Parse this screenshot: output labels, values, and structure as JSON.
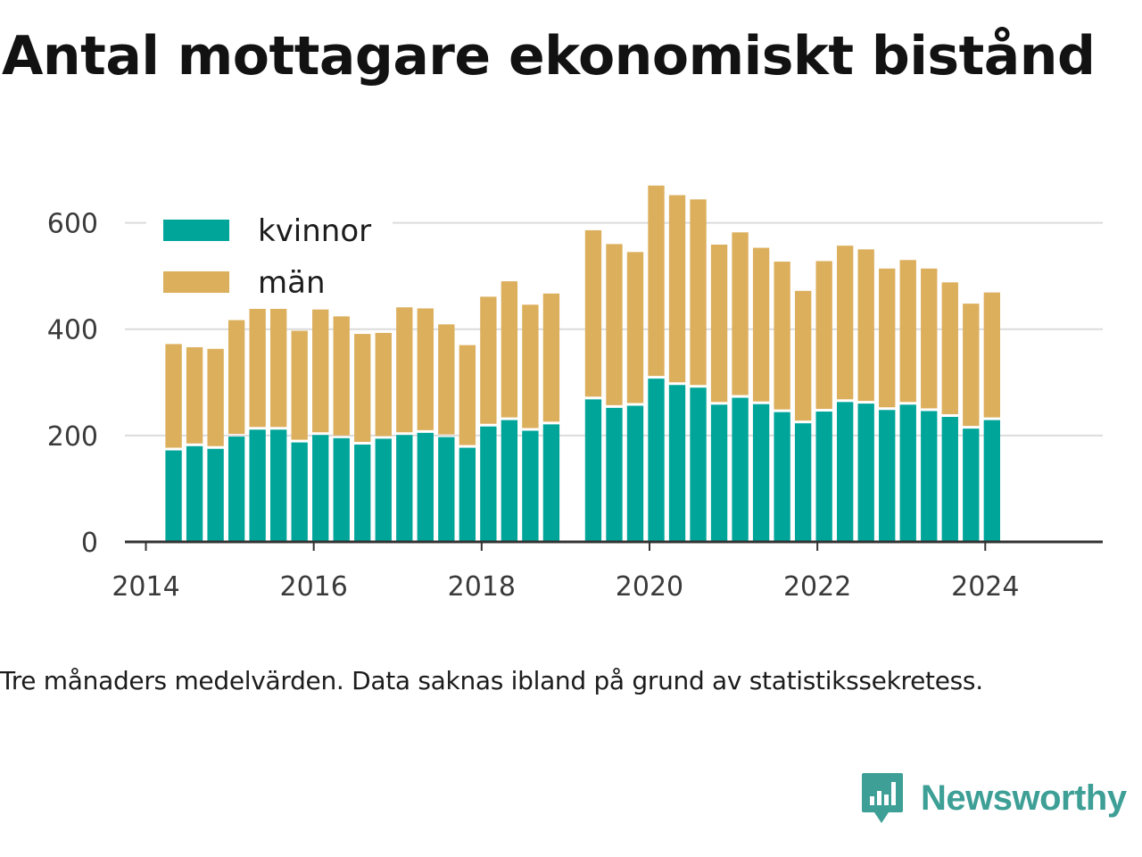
{
  "title": "Antal mottagare ekonomiskt bistånd",
  "caption": "Tre månaders medelvärden. Data saknas ibland på grund av statistikssekretess.",
  "brand": {
    "name": "Newsworthy",
    "icon": "newsworthy-logo-icon",
    "color": "#3d9f96"
  },
  "colors": {
    "kvinnor": "#00a59a",
    "man": "#dcaf5d",
    "grid": "#dcdcdc",
    "axis": "#333333"
  },
  "chart_data": {
    "type": "bar",
    "stacked": true,
    "ylim": [
      0,
      700
    ],
    "yticks": [
      0,
      200,
      400,
      600
    ],
    "xlim": [
      2013.75,
      2025.4
    ],
    "xticks": [
      2014,
      2016,
      2018,
      2020,
      2022,
      2024
    ],
    "grid": true,
    "legend_position": "top-left",
    "x": [
      2014.33,
      2014.58,
      2014.83,
      2015.08,
      2015.33,
      2015.58,
      2015.83,
      2016.08,
      2016.33,
      2016.58,
      2016.83,
      2017.08,
      2017.33,
      2017.58,
      2017.83,
      2018.08,
      2018.33,
      2018.58,
      2018.83,
      2019.33,
      2019.58,
      2019.83,
      2020.08,
      2020.33,
      2020.58,
      2020.83,
      2021.08,
      2021.33,
      2021.58,
      2021.83,
      2022.08,
      2022.33,
      2022.58,
      2022.83,
      2023.08,
      2023.33,
      2023.58,
      2023.83,
      2024.08
    ],
    "series": [
      {
        "name": "kvinnor",
        "color": "#00a59a",
        "values": [
          172,
          180,
          175,
          198,
          211,
          211,
          187,
          201,
          195,
          183,
          194,
          201,
          205,
          197,
          177,
          217,
          229,
          209,
          221,
          268,
          252,
          256,
          307,
          295,
          290,
          258,
          271,
          259,
          244,
          223,
          245,
          263,
          260,
          248,
          258,
          246,
          235,
          213,
          229
        ]
      },
      {
        "name": "män",
        "color": "#dcaf5d",
        "values": [
          200,
          186,
          188,
          219,
          240,
          234,
          210,
          236,
          229,
          208,
          199,
          240,
          234,
          212,
          193,
          244,
          261,
          237,
          246,
          318,
          308,
          289,
          363,
          357,
          354,
          301,
          311,
          294,
          283,
          249,
          283,
          294,
          290,
          266,
          272,
          268,
          253,
          235,
          240
        ]
      }
    ]
  }
}
